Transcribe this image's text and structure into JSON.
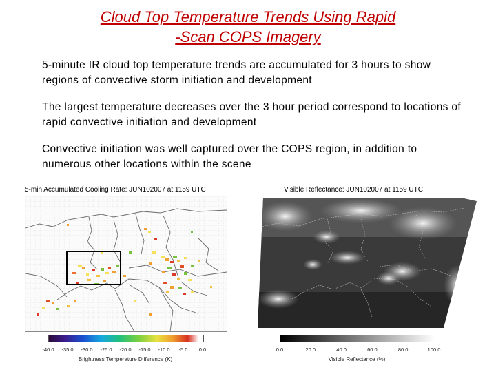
{
  "slide": {
    "title_line1": "Cloud Top Temperature Trends Using Rapid",
    "title_line2": "-Scan COPS Imagery",
    "paragraphs": [
      "5-minute IR cloud top temperature trends are accumulated for 3 hours to show regions of convective storm initiation and development",
      "The largest temperature decreases over the 3 hour period correspond to locations of rapid convective initiation and development",
      "Convective initiation was well captured over the COPS region, in addition to numerous other locations within the scene"
    ]
  },
  "left_panel": {
    "title": "5-min Accumulated Cooling Rate: JUN102007 at 1159 UTC",
    "colorbar_ticks": [
      "-40.0",
      "-35.0",
      "-30.0",
      "-25.0",
      "-20.0",
      "-15.0",
      "-10.0",
      "-5.0",
      "0.0"
    ],
    "colorbar_label": "Brightness Temperature Difference (K)"
  },
  "right_panel": {
    "title": "Visible Reflectance: JUN102007 at 1159 UTC",
    "colorbar_ticks": [
      "0.0",
      "20.0",
      "40.0",
      "60.0",
      "80.0",
      "100.0"
    ],
    "colorbar_label": "Visible Reflectance (%)"
  }
}
